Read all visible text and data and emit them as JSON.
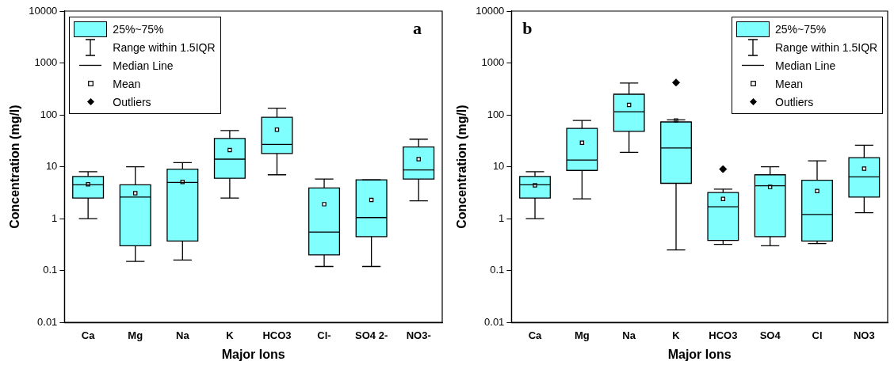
{
  "chart_data": [
    {
      "type": "box",
      "title": "a",
      "xlabel": "Major Ions",
      "ylabel": "Concentration (mg/l)",
      "categories": [
        "Ca",
        "Mg",
        "Na",
        "K",
        "HCO3",
        "Cl-",
        "SO4 2-",
        "NO3-"
      ],
      "series": [
        {
          "name": "25%~75%",
          "color": "#80ffff",
          "boxes": [
            {
              "low": 1,
              "q1": 2.5,
              "median": 4.5,
              "q3": 6.5,
              "high": 8,
              "mean": 4.6
            },
            {
              "low": 0.15,
              "q1": 0.3,
              "median": 2.6,
              "q3": 4.5,
              "high": 10,
              "mean": 3.1
            },
            {
              "low": 0.16,
              "q1": 0.37,
              "median": 5,
              "q3": 9,
              "high": 12,
              "mean": 5.1
            },
            {
              "low": 2.5,
              "q1": 6,
              "median": 14,
              "q3": 35,
              "high": 50,
              "mean": 21
            },
            {
              "low": 7,
              "q1": 18,
              "median": 27,
              "q3": 90,
              "high": 135,
              "mean": 52
            },
            {
              "low": 0.12,
              "q1": 0.2,
              "median": 0.55,
              "q3": 3.9,
              "high": 5.8,
              "mean": 1.9
            },
            {
              "low": 0.12,
              "q1": 0.45,
              "median": 1.05,
              "q3": 5.6,
              "high": 5.6,
              "mean": 2.3
            },
            {
              "low": 2.2,
              "q1": 5.8,
              "median": 8.7,
              "q3": 24,
              "high": 34,
              "mean": 14
            }
          ]
        }
      ],
      "annotations": [
        "Range within 1.5IQR",
        "Median Line",
        "Mean",
        "Outliers"
      ],
      "log": true,
      "ylim": [
        0.01,
        10000
      ],
      "yticks": [
        0.01,
        0.1,
        1,
        10,
        100,
        1000,
        10000
      ],
      "legend": "top left",
      "grid": false
    },
    {
      "type": "box",
      "title": "b",
      "xlabel": "Major Ions",
      "ylabel": "Concentration (mg/l)",
      "categories": [
        "Ca",
        "Mg",
        "Na",
        "K",
        "HCO3",
        "SO4",
        "Cl",
        "NO3"
      ],
      "series": [
        {
          "name": "25%~75%",
          "color": "#80ffff",
          "boxes": [
            {
              "low": 1,
              "q1": 2.5,
              "median": 4.5,
              "q3": 6.5,
              "high": 8,
              "mean": 4.4
            },
            {
              "low": 2.4,
              "q1": 8.5,
              "median": 13.5,
              "q3": 55,
              "high": 78,
              "mean": 29
            },
            {
              "low": 19,
              "q1": 48,
              "median": 115,
              "q3": 250,
              "high": 410,
              "mean": 155
            },
            {
              "low": 0.25,
              "q1": 4.8,
              "median": 23,
              "q3": 73,
              "high": 80,
              "mean": 78,
              "outliers": [
                420
              ]
            },
            {
              "low": 0.32,
              "q1": 0.38,
              "median": 1.7,
              "q3": 3.2,
              "high": 3.7,
              "mean": 2.4,
              "outliers": [
                9
              ]
            },
            {
              "low": 0.3,
              "q1": 0.45,
              "median": 4.3,
              "q3": 7,
              "high": 10,
              "mean": 4.1
            },
            {
              "low": 0.33,
              "q1": 0.37,
              "median": 1.2,
              "q3": 5.5,
              "high": 13,
              "mean": 3.4
            },
            {
              "low": 1.3,
              "q1": 2.6,
              "median": 6.4,
              "q3": 15,
              "high": 26,
              "mean": 9.2
            }
          ]
        }
      ],
      "annotations": [
        "Range within 1.5IQR",
        "Median Line",
        "Mean",
        "Outliers"
      ],
      "log": true,
      "ylim": [
        0.01,
        10000
      ],
      "yticks": [
        0.01,
        0.1,
        1,
        10,
        100,
        1000,
        10000
      ],
      "legend": "top right",
      "grid": false
    }
  ]
}
